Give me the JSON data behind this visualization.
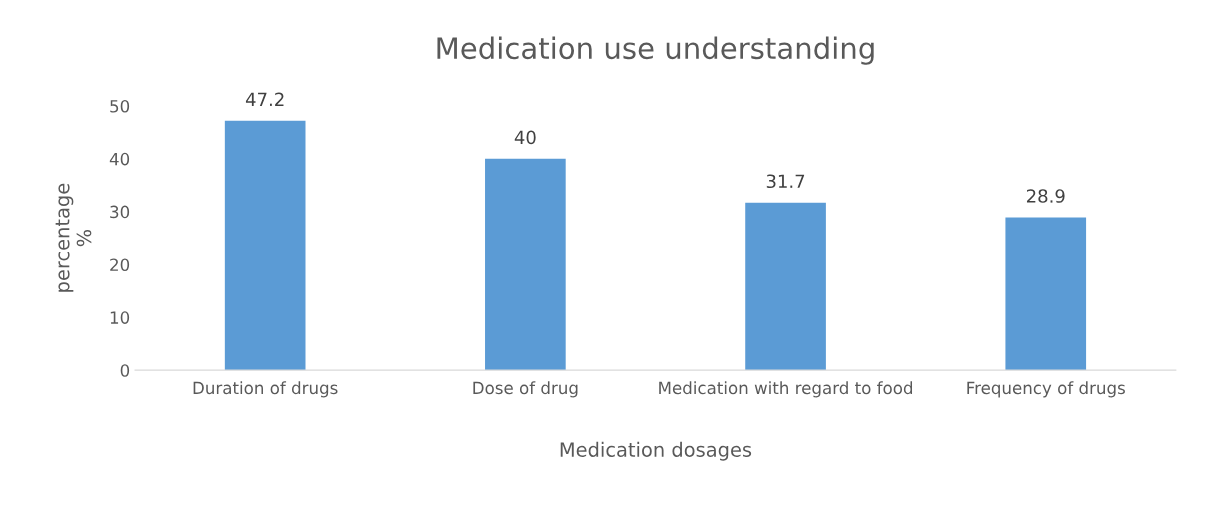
{
  "chart_data": {
    "type": "bar",
    "title": "Medication use understanding",
    "xlabel": "Medication dosages",
    "ylabel": "percentage\n%",
    "categories": [
      "Duration of drugs",
      "Dose of drug",
      "Medication with regard to food",
      "Frequency of drugs"
    ],
    "values": [
      47.2,
      40,
      31.7,
      28.9
    ],
    "color": "#5b9bd5",
    "ylim": [
      0,
      50
    ],
    "yticks": [
      0,
      10,
      20,
      30,
      40,
      50
    ],
    "grid": false,
    "data_labels": true
  }
}
